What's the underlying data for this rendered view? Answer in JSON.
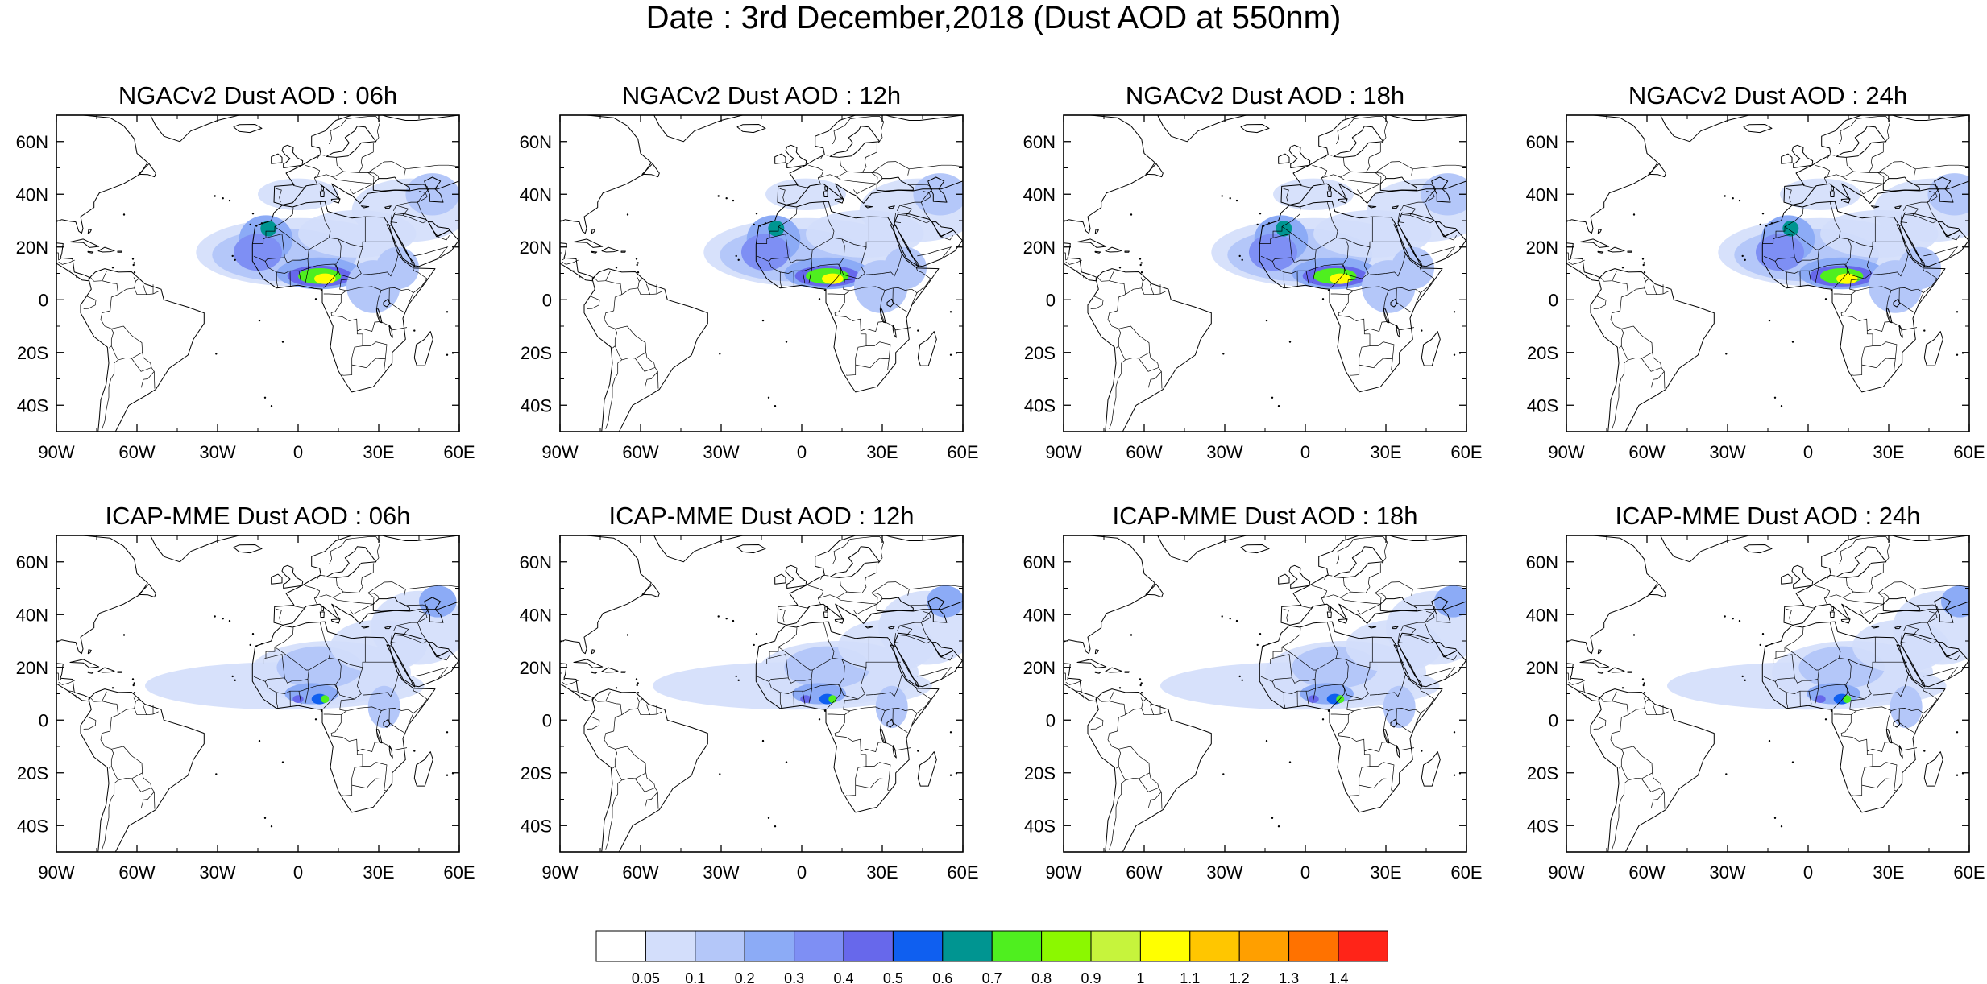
{
  "figure": {
    "title": "Date : 3rd December,2018 (Dust AOD at 550nm)"
  },
  "panels": [
    {
      "title": "NGACv2 Dust AOD : 06h",
      "model": "NGACv2",
      "hour": "06h"
    },
    {
      "title": "NGACv2 Dust AOD : 12h",
      "model": "NGACv2",
      "hour": "12h"
    },
    {
      "title": "NGACv2 Dust AOD : 18h",
      "model": "NGACv2",
      "hour": "18h"
    },
    {
      "title": "NGACv2 Dust AOD : 24h",
      "model": "NGACv2",
      "hour": "24h"
    },
    {
      "title": "ICAP-MME Dust AOD : 06h",
      "model": "ICAP-MME",
      "hour": "06h"
    },
    {
      "title": "ICAP-MME Dust AOD : 12h",
      "model": "ICAP-MME",
      "hour": "12h"
    },
    {
      "title": "ICAP-MME Dust AOD : 18h",
      "model": "ICAP-MME",
      "hour": "18h"
    },
    {
      "title": "ICAP-MME Dust AOD : 24h",
      "model": "ICAP-MME",
      "hour": "24h"
    }
  ],
  "map_extent": {
    "lon": [
      -90,
      60
    ],
    "lat": [
      -50,
      70
    ]
  },
  "axis_labels": {
    "lat": [
      {
        "value": 60,
        "label": "60N"
      },
      {
        "value": 40,
        "label": "40N"
      },
      {
        "value": 20,
        "label": "20N"
      },
      {
        "value": 0,
        "label": "0"
      },
      {
        "value": -20,
        "label": "20S"
      },
      {
        "value": -40,
        "label": "40S"
      }
    ],
    "lon": [
      {
        "value": -90,
        "label": "90W"
      },
      {
        "value": -60,
        "label": "60W"
      },
      {
        "value": -30,
        "label": "30W"
      },
      {
        "value": 0,
        "label": "0"
      },
      {
        "value": 30,
        "label": "30E"
      },
      {
        "value": 60,
        "label": "60E"
      }
    ]
  },
  "colorbar": {
    "colors": [
      "#ffffff",
      "#d3defb",
      "#b4c7f9",
      "#8cabf6",
      "#7e8ff4",
      "#6768eb",
      "#0f5ff0",
      "#009591",
      "#4fef1f",
      "#8bf800",
      "#c6f43c",
      "#ffff00",
      "#ffc600",
      "#ff9f00",
      "#ff7200",
      "#ff2418"
    ],
    "labels": [
      "0.05",
      "0.1",
      "0.2",
      "0.3",
      "0.4",
      "0.5",
      "0.6",
      "0.7",
      "0.8",
      "0.9",
      "1",
      "1.1",
      "1.2",
      "1.3",
      "1.4"
    ]
  },
  "dust": {
    "ngac": [
      {
        "lon": 0,
        "lat": 18,
        "rx": 38,
        "ry": 13,
        "level": 1
      },
      {
        "lon": -5,
        "lat": 17,
        "rx": 27,
        "ry": 10,
        "level": 2
      },
      {
        "lon": 22,
        "lat": 25,
        "rx": 22,
        "ry": 9,
        "level": 1
      },
      {
        "lon": 42,
        "lat": 34,
        "rx": 22,
        "ry": 12,
        "level": 1
      },
      {
        "lon": 50,
        "lat": 40,
        "rx": 10,
        "ry": 8,
        "level": 2
      },
      {
        "lon": 0,
        "lat": 40,
        "rx": 15,
        "ry": 6,
        "level": 1
      },
      {
        "lon": -12,
        "lat": 23,
        "rx": 10,
        "ry": 9,
        "level": 3
      },
      {
        "lon": -15,
        "lat": 18,
        "rx": 9,
        "ry": 7,
        "level": 4
      },
      {
        "lon": -11,
        "lat": 27,
        "rx": 3,
        "ry": 3,
        "level": 7
      },
      {
        "lon": 8,
        "lat": 10,
        "rx": 16,
        "ry": 6,
        "level": 3
      },
      {
        "lon": 8,
        "lat": 9,
        "rx": 12,
        "ry": 4,
        "level": 5
      },
      {
        "lon": 8,
        "lat": 9,
        "rx": 8,
        "ry": 3,
        "level": 8
      },
      {
        "lon": 10,
        "lat": 8,
        "rx": 4,
        "ry": 2,
        "level": 11
      },
      {
        "lon": 28,
        "lat": 5,
        "rx": 10,
        "ry": 10,
        "level": 2
      },
      {
        "lon": 37,
        "lat": 12,
        "rx": 8,
        "ry": 8,
        "level": 2
      }
    ],
    "icap": [
      {
        "lon": -5,
        "lat": 13,
        "rx": 52,
        "ry": 9,
        "level": 1
      },
      {
        "lon": 12,
        "lat": 18,
        "rx": 30,
        "ry": 12,
        "level": 1
      },
      {
        "lon": 8,
        "lat": 20,
        "rx": 16,
        "ry": 8,
        "level": 2
      },
      {
        "lon": 30,
        "lat": 28,
        "rx": 18,
        "ry": 10,
        "level": 1
      },
      {
        "lon": 45,
        "lat": 35,
        "rx": 18,
        "ry": 14,
        "level": 1
      },
      {
        "lon": 52,
        "lat": 45,
        "rx": 7,
        "ry": 6,
        "level": 3
      },
      {
        "lon": 5,
        "lat": 10,
        "rx": 10,
        "ry": 4,
        "level": 3
      },
      {
        "lon": 8,
        "lat": 8,
        "rx": 3,
        "ry": 2,
        "level": 6
      },
      {
        "lon": 10,
        "lat": 8,
        "rx": 1.5,
        "ry": 1.5,
        "level": 8
      },
      {
        "lon": 0,
        "lat": 8,
        "rx": 2,
        "ry": 1.5,
        "level": 5
      },
      {
        "lon": 32,
        "lat": 5,
        "rx": 6,
        "ry": 8,
        "level": 2
      }
    ]
  }
}
